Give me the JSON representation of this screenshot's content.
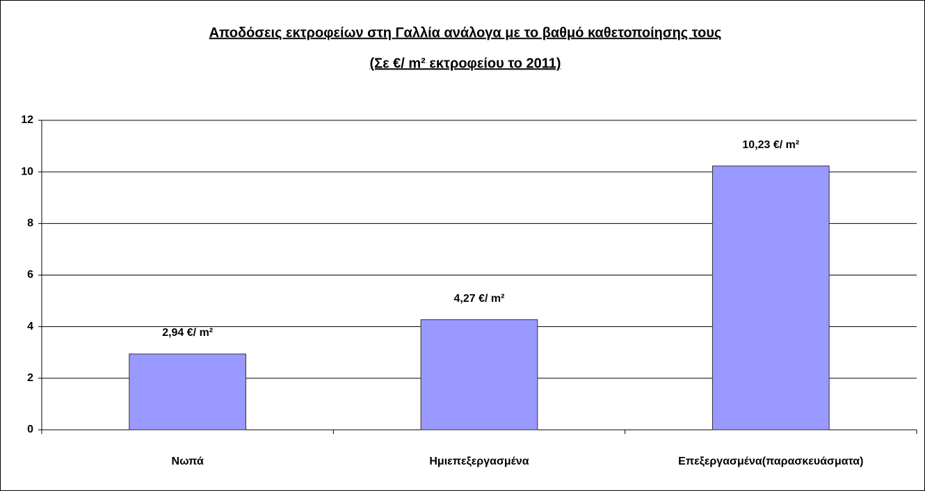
{
  "chart_data": {
    "type": "bar",
    "title": "Αποδόσεις εκτροφείων στη Γαλλία ανάλογα με το βαθμό καθετοποίησης τους",
    "subtitle": "(Σε  €/ m² εκτροφείου το  2011)",
    "categories": [
      "Νωπά",
      "Ημιεπεξεργασμένα",
      "Επεξεργασμένα(παρασκευάσματα)"
    ],
    "values": [
      2.94,
      4.27,
      10.23
    ],
    "value_labels": [
      "2,94 €/ m²",
      "4,27 €/ m²",
      "10,23 €/ m²"
    ],
    "color": "#9999ff",
    "ylim": [
      0,
      12
    ],
    "yticks": [
      0,
      2,
      4,
      6,
      8,
      10,
      12
    ],
    "grid": true
  }
}
